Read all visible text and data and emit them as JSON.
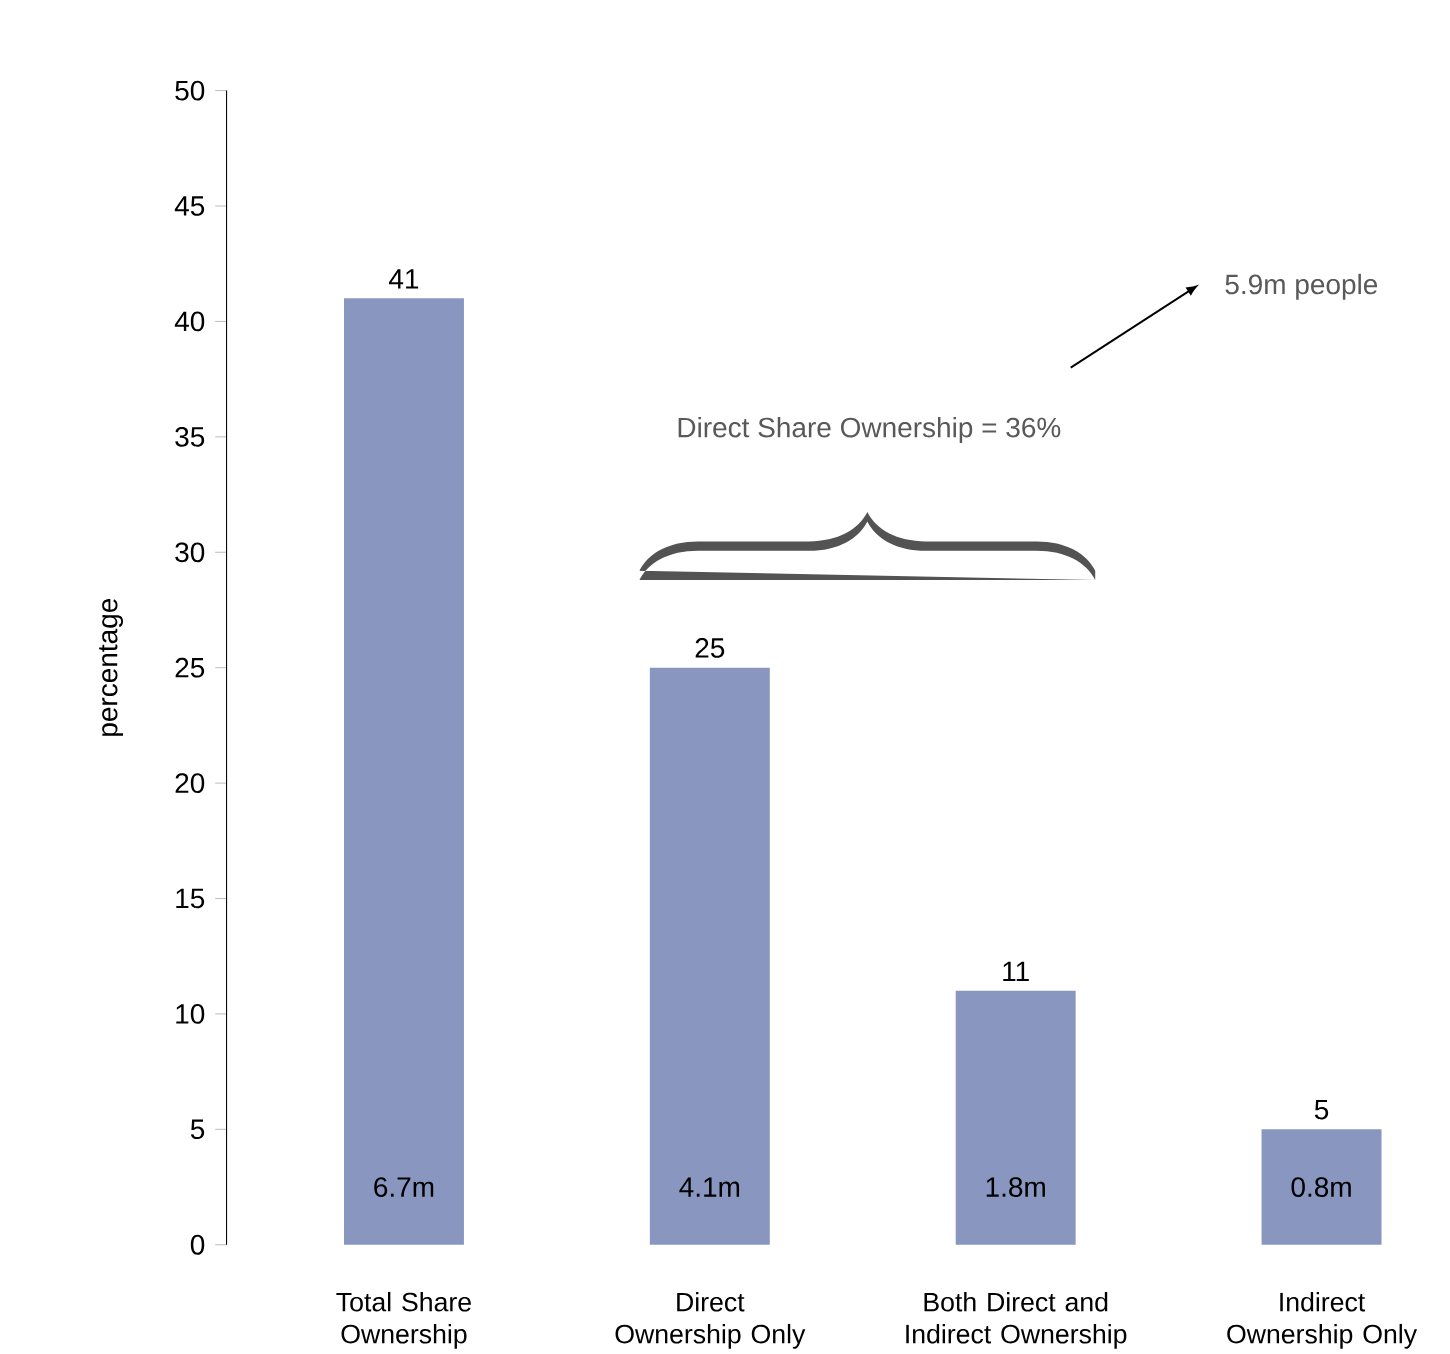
{
  "chart_data": {
    "type": "bar",
    "ylabel": "percentage",
    "categories": [
      "Total Share Ownership",
      "Direct Ownership Only",
      "Both Direct and Indirect Ownership",
      "Indirect Ownership Only"
    ],
    "values": [
      41,
      25,
      11,
      5
    ],
    "color": "#8896c0",
    "data_labels": true,
    "ylim": [
      0,
      50
    ],
    "yticks": [
      0,
      5,
      10,
      15,
      20,
      25,
      30,
      35,
      40,
      45,
      50
    ],
    "grid": false,
    "annotations": [
      "Direct Share Ownership = 36%",
      "5.9m people",
      "6.7m",
      "4.1m",
      "1.8m",
      "0.8m"
    ]
  }
}
